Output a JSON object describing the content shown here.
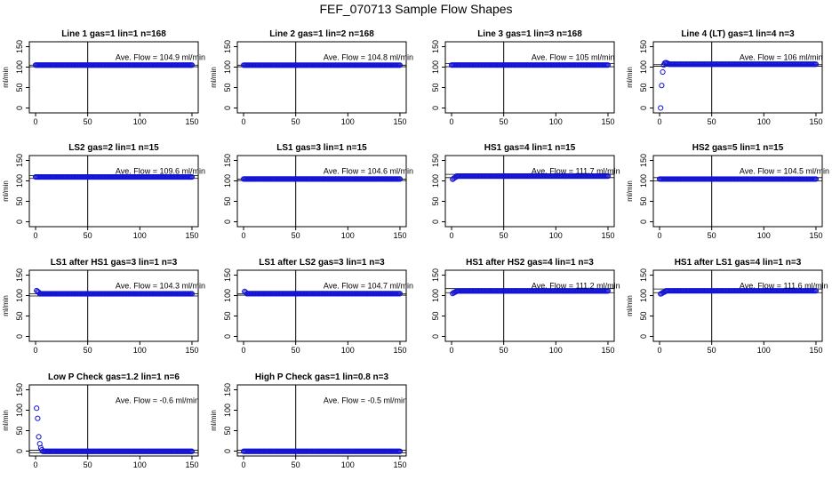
{
  "figure": {
    "title": "FEF_070713  Sample Flow Shapes"
  },
  "chart_data": [
    {
      "type": "scatter",
      "title": "Line 1 gas=1 lin=1 n=168",
      "ylabel": "ml/min",
      "annotation": "Ave. Flow = 104.9  ml/min",
      "xlim": [
        0,
        150
      ],
      "ylim": [
        0,
        150
      ],
      "x_ticks": [
        0,
        50,
        100,
        150
      ],
      "y_ticks": [
        0,
        50,
        100,
        150
      ],
      "vline": 50,
      "hlines": [
        104.9,
        101
      ],
      "points": [],
      "series_level": 104.9,
      "series_x": [
        0,
        150
      ]
    },
    {
      "type": "scatter",
      "title": "Line 2 gas=1 lin=2 n=168",
      "ylabel": "ml/min",
      "annotation": "Ave. Flow = 104.8  ml/min",
      "xlim": [
        0,
        150
      ],
      "ylim": [
        0,
        150
      ],
      "x_ticks": [
        0,
        50,
        100,
        150
      ],
      "y_ticks": [
        0,
        50,
        100,
        150
      ],
      "vline": 50,
      "hlines": [
        104.8,
        101
      ],
      "points": [],
      "series_level": 104.8,
      "series_x": [
        0,
        150
      ]
    },
    {
      "type": "scatter",
      "title": "Line 3 gas=1 lin=3 n=168",
      "ylabel": "",
      "annotation": "Ave. Flow = 105  ml/min",
      "xlim": [
        0,
        150
      ],
      "ylim": [
        0,
        150
      ],
      "x_ticks": [
        0,
        50,
        100,
        150
      ],
      "y_ticks": [
        0,
        50,
        100,
        150
      ],
      "vline": 50,
      "hlines": [
        109,
        101
      ],
      "points": [],
      "series_level": 105,
      "series_x": [
        0,
        150
      ]
    },
    {
      "type": "scatter",
      "title": "Line 4 (LT) gas=1 lin=4 n=3",
      "ylabel": "ml/min",
      "annotation": "Ave. Flow = 106  ml/min",
      "xlim": [
        0,
        150
      ],
      "ylim": [
        0,
        150
      ],
      "x_ticks": [
        0,
        50,
        100,
        150
      ],
      "y_ticks": [
        0,
        50,
        100,
        150
      ],
      "vline": 50,
      "hlines": [
        106,
        102
      ],
      "points": [
        [
          1,
          0
        ],
        [
          2,
          55
        ],
        [
          3,
          88
        ],
        [
          4,
          105
        ],
        [
          5,
          110
        ],
        [
          6,
          111
        ],
        [
          7,
          110
        ],
        [
          8,
          109
        ]
      ],
      "series_level": 107,
      "series_x": [
        9,
        150
      ]
    },
    {
      "type": "scatter",
      "title": "LS2 gas=2 lin=1 n=15",
      "ylabel": "ml/min",
      "annotation": "Ave. Flow = 109.6  ml/min",
      "xlim": [
        0,
        150
      ],
      "ylim": [
        0,
        150
      ],
      "x_ticks": [
        0,
        50,
        100,
        150
      ],
      "y_ticks": [
        0,
        50,
        100,
        150
      ],
      "vline": 50,
      "hlines": [
        113,
        106
      ],
      "points": [],
      "series_level": 109.6,
      "series_x": [
        0,
        150
      ]
    },
    {
      "type": "scatter",
      "title": "LS1 gas=3 lin=1 n=15",
      "ylabel": "",
      "annotation": "Ave. Flow = 104.6  ml/min",
      "xlim": [
        0,
        150
      ],
      "ylim": [
        0,
        150
      ],
      "x_ticks": [
        0,
        50,
        100,
        150
      ],
      "y_ticks": [
        0,
        50,
        100,
        150
      ],
      "vline": 50,
      "hlines": [
        104.6,
        101
      ],
      "points": [],
      "series_level": 104.6,
      "series_x": [
        0,
        150
      ]
    },
    {
      "type": "scatter",
      "title": "HS1 gas=4 lin=1 n=15",
      "ylabel": "",
      "annotation": "Ave. Flow = 111.7  ml/min",
      "xlim": [
        0,
        150
      ],
      "ylim": [
        0,
        150
      ],
      "x_ticks": [
        0,
        50,
        100,
        150
      ],
      "y_ticks": [
        0,
        50,
        100,
        150
      ],
      "vline": 50,
      "hlines": [
        116,
        108
      ],
      "points": [
        [
          1,
          104
        ],
        [
          2,
          106
        ],
        [
          3,
          108
        ],
        [
          4,
          109
        ]
      ],
      "series_level": 111.7,
      "series_x": [
        5,
        150
      ]
    },
    {
      "type": "scatter",
      "title": "HS2 gas=5 lin=1 n=15",
      "ylabel": "ml/min",
      "annotation": "Ave. Flow = 104.5  ml/min",
      "xlim": [
        0,
        150
      ],
      "ylim": [
        0,
        150
      ],
      "x_ticks": [
        0,
        50,
        100,
        150
      ],
      "y_ticks": [
        0,
        50,
        100,
        150
      ],
      "vline": 50,
      "hlines": [
        108,
        100
      ],
      "points": [],
      "series_level": 104.5,
      "series_x": [
        0,
        150
      ]
    },
    {
      "type": "scatter",
      "title": "LS1 after HS1 gas=3 lin=1 n=3",
      "ylabel": "ml/min",
      "annotation": "Ave. Flow = 104.3  ml/min",
      "xlim": [
        0,
        150
      ],
      "ylim": [
        0,
        150
      ],
      "x_ticks": [
        0,
        50,
        100,
        150
      ],
      "y_ticks": [
        0,
        50,
        100,
        150
      ],
      "vline": 50,
      "hlines": [
        104.3,
        99
      ],
      "points": [
        [
          1,
          112
        ],
        [
          2,
          110
        ],
        [
          3,
          108
        ]
      ],
      "series_level": 104.3,
      "series_x": [
        4,
        150
      ]
    },
    {
      "type": "scatter",
      "title": "LS1 after LS2 gas=3 lin=1 n=3",
      "ylabel": "",
      "annotation": "Ave. Flow = 104.7  ml/min",
      "xlim": [
        0,
        150
      ],
      "ylim": [
        0,
        150
      ],
      "x_ticks": [
        0,
        50,
        100,
        150
      ],
      "y_ticks": [
        0,
        50,
        100,
        150
      ],
      "vline": 50,
      "hlines": [
        104.7,
        101
      ],
      "points": [
        [
          1,
          110
        ],
        [
          2,
          108
        ]
      ],
      "series_level": 104.7,
      "series_x": [
        3,
        150
      ]
    },
    {
      "type": "scatter",
      "title": "HS1 after HS2 gas=4 lin=1 n=3",
      "ylabel": "",
      "annotation": "Ave. Flow = 111.2  ml/min",
      "xlim": [
        0,
        150
      ],
      "ylim": [
        0,
        150
      ],
      "x_ticks": [
        0,
        50,
        100,
        150
      ],
      "y_ticks": [
        0,
        50,
        100,
        150
      ],
      "vline": 50,
      "hlines": [
        117,
        107
      ],
      "points": [
        [
          1,
          105
        ],
        [
          2,
          107
        ],
        [
          3,
          108
        ],
        [
          4,
          109
        ]
      ],
      "series_level": 111.2,
      "series_x": [
        5,
        150
      ]
    },
    {
      "type": "scatter",
      "title": "HS1 after LS1 gas=4 lin=1 n=3",
      "ylabel": "ml/min",
      "annotation": "Ave. Flow = 111.6  ml/min",
      "xlim": [
        0,
        150
      ],
      "ylim": [
        0,
        150
      ],
      "x_ticks": [
        0,
        50,
        100,
        150
      ],
      "y_ticks": [
        0,
        50,
        100,
        150
      ],
      "vline": 50,
      "hlines": [
        116,
        107
      ],
      "points": [
        [
          1,
          104
        ],
        [
          2,
          105
        ],
        [
          3,
          107
        ],
        [
          4,
          108
        ],
        [
          5,
          109
        ]
      ],
      "series_level": 111.6,
      "series_x": [
        6,
        150
      ]
    },
    {
      "type": "scatter",
      "title": "Low P Check gas=1.2 lin=1 n=6",
      "ylabel": "ml/min",
      "annotation": "Ave. Flow = -0.6  ml/min",
      "xlim": [
        0,
        150
      ],
      "ylim": [
        0,
        150
      ],
      "x_ticks": [
        0,
        50,
        100,
        150
      ],
      "y_ticks": [
        0,
        50,
        100,
        150
      ],
      "vline": 50,
      "hlines": [
        2,
        -4
      ],
      "points": [
        [
          1,
          105
        ],
        [
          2,
          80
        ],
        [
          3,
          35
        ],
        [
          4,
          18
        ],
        [
          5,
          8
        ],
        [
          6,
          3
        ]
      ],
      "series_level": -0.6,
      "series_x": [
        7,
        150
      ]
    },
    {
      "type": "scatter",
      "title": "High P Check gas=1 lin=0.8 n=3",
      "ylabel": "ml/min",
      "annotation": "Ave. Flow = -0.5  ml/min",
      "xlim": [
        0,
        150
      ],
      "ylim": [
        0,
        150
      ],
      "x_ticks": [
        0,
        50,
        100,
        150
      ],
      "y_ticks": [
        0,
        50,
        100,
        150
      ],
      "vline": 50,
      "hlines": [
        2,
        -4
      ],
      "points": [],
      "series_level": -0.5,
      "series_x": [
        0,
        150
      ]
    }
  ],
  "colors": {
    "points": "#1414d4",
    "axes": "#000000"
  }
}
